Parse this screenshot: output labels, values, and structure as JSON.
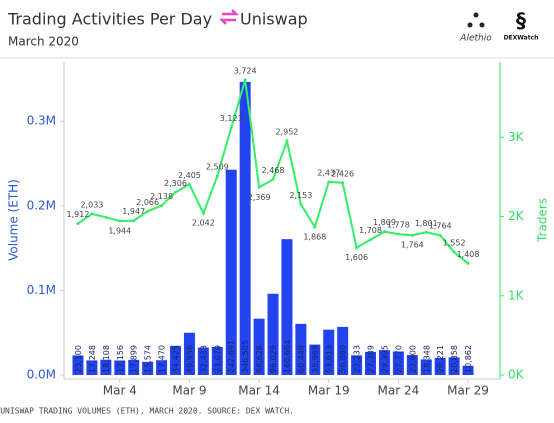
{
  "chart_data": {
    "type": "bar_line",
    "title": "Trading Activities Per Day",
    "brand": "Uniswap",
    "subtitle": "March 2020",
    "logos": [
      "Alethio",
      "DEXWatch"
    ],
    "caption": "UNISWAP TRADING VOLUMES (ETH), MARCH 2020. SOURCE: DEX WATCH.",
    "ylabel": "Volume (ETH)",
    "y2label": "Traders",
    "categories": [
      null,
      null,
      null,
      "Mar 4",
      null,
      null,
      null,
      null,
      "Mar 9",
      null,
      null,
      null,
      null,
      "Mar 14",
      null,
      null,
      null,
      null,
      "Mar 19",
      null,
      null,
      null,
      null,
      "Mar 24",
      null,
      null,
      null,
      null,
      "Mar 29"
    ],
    "series": [
      {
        "name": "Volume (ETH)",
        "type": "bar",
        "color": "#2244ee",
        "values": [
          23100,
          17248,
          18108,
          17156,
          17899,
          15574,
          17470,
          34425,
          49956,
          32433,
          33079,
          242691,
          346505,
          66628,
          96029,
          160604,
          60449,
          35969,
          53613,
          56880,
          23233,
          27389,
          29395,
          27770,
          23600,
          18348,
          20221,
          20858,
          10862
        ],
        "value_labels": [
          "23,100",
          "17,248",
          "18,108",
          "17,156",
          "17,899",
          "15,574",
          "17,470",
          "34,425",
          "49,956",
          "32,433",
          "33,079",
          "242,691",
          "346,505",
          "66,628",
          "96,029",
          "160,604",
          "60,449",
          "35,969",
          "53,613",
          "56,880",
          "23,233",
          "27,389",
          "29,395",
          "27,770",
          "23,600",
          "18,348",
          "20,221",
          "20,858",
          "10,862"
        ]
      },
      {
        "name": "Traders",
        "type": "line",
        "axis": "y2",
        "color": "#33ee66",
        "values": [
          1912,
          2033,
          1990,
          1944,
          1947,
          2066,
          2138,
          2306,
          2405,
          2042,
          2509,
          3121,
          3724,
          2369,
          2468,
          2952,
          2153,
          1868,
          2437,
          2426,
          1606,
          1708,
          1809,
          1778,
          1764,
          1801,
          1764,
          1552,
          1408
        ],
        "value_labels": [
          "1,912",
          "2,033",
          null,
          "1,944",
          "1,947",
          "2,066",
          "2,138",
          "2,306",
          "2,405",
          "2,042",
          "2,509",
          "3,121",
          "3,724",
          "2,369",
          "2,468",
          "2,952",
          "2,153",
          "1,868",
          "2,437",
          "2,426",
          "1,606",
          "1,708",
          "1,809",
          "1,778",
          "1,764",
          "1,801",
          "1,764",
          "1,552",
          "1,408"
        ]
      }
    ],
    "ylim": [
      0,
      370000
    ],
    "yticks": [
      {
        "value": 0,
        "label": "0.0M"
      },
      {
        "value": 100000,
        "label": "0.1M"
      },
      {
        "value": 200000,
        "label": "0.2M"
      },
      {
        "value": 300000,
        "label": "0.3M"
      }
    ],
    "y2lim": [
      0,
      3950
    ],
    "y2ticks": [
      {
        "value": 0,
        "label": "0K"
      },
      {
        "value": 1000,
        "label": "1K"
      },
      {
        "value": 2000,
        "label": "2K"
      },
      {
        "value": 3000,
        "label": "3K"
      }
    ]
  }
}
